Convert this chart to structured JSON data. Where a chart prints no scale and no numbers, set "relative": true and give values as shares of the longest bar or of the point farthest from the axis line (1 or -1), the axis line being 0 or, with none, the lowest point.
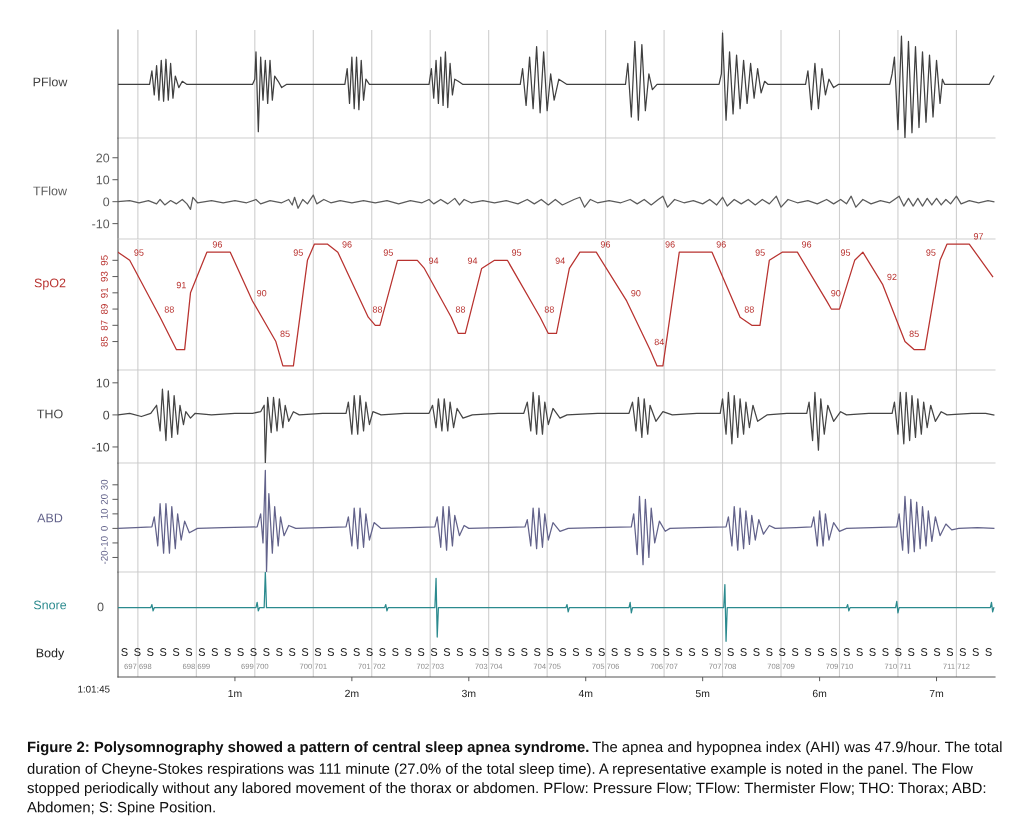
{
  "chart_data": [
    {
      "type": "line",
      "ylabel": "PFlow",
      "relative": true,
      "tick_labels": false,
      "xlim": [
        0,
        7.5
      ],
      "color": "#404040",
      "x": [
        0,
        0.27,
        0.29,
        0.31,
        0.33,
        0.35,
        0.37,
        0.39,
        0.41,
        0.43,
        0.45,
        0.47,
        0.49,
        0.52,
        0.55,
        0.59,
        1.15,
        1.17,
        1.18,
        1.2,
        1.22,
        1.24,
        1.26,
        1.28,
        1.3,
        1.32,
        1.34,
        1.37,
        1.4,
        1.44,
        1.94,
        1.96,
        1.98,
        2.0,
        2.02,
        2.04,
        2.06,
        2.08,
        2.1,
        2.12,
        2.15,
        2.66,
        2.68,
        2.7,
        2.72,
        2.74,
        2.76,
        2.78,
        2.8,
        2.82,
        2.84,
        2.86,
        2.88,
        2.91,
        2.95,
        3.44,
        3.46,
        3.49,
        3.52,
        3.55,
        3.58,
        3.61,
        3.64,
        3.67,
        3.7,
        3.73,
        3.77,
        3.84,
        4.34,
        4.36,
        4.39,
        4.42,
        4.45,
        4.48,
        4.51,
        4.54,
        4.57,
        4.61,
        5.14,
        5.16,
        5.17,
        5.2,
        5.23,
        5.26,
        5.29,
        5.32,
        5.35,
        5.38,
        5.41,
        5.44,
        5.47,
        5.5,
        5.53,
        5.56,
        5.88,
        5.9,
        5.93,
        5.96,
        5.99,
        6.02,
        6.05,
        6.08,
        6.12,
        6.16,
        6.6,
        6.62,
        6.64,
        6.67,
        6.7,
        6.73,
        6.76,
        6.79,
        6.82,
        6.85,
        6.88,
        6.91,
        6.94,
        6.97,
        7.0,
        7.03,
        7.05,
        7.07,
        7.45,
        7.49
      ],
      "values": [
        0.51,
        0.51,
        0.64,
        0.41,
        0.69,
        0.36,
        0.74,
        0.35,
        0.75,
        0.36,
        0.71,
        0.38,
        0.59,
        0.48,
        0.54,
        0.51,
        0.51,
        0.56,
        0.82,
        0.06,
        0.77,
        0.36,
        0.74,
        0.33,
        0.74,
        0.36,
        0.59,
        0.54,
        0.48,
        0.51,
        0.51,
        0.66,
        0.33,
        0.77,
        0.28,
        0.77,
        0.27,
        0.74,
        0.36,
        0.56,
        0.51,
        0.51,
        0.66,
        0.38,
        0.74,
        0.33,
        0.77,
        0.31,
        0.82,
        0.29,
        0.71,
        0.41,
        0.56,
        0.54,
        0.51,
        0.51,
        0.66,
        0.31,
        0.77,
        0.28,
        0.87,
        0.24,
        0.82,
        0.26,
        0.61,
        0.36,
        0.56,
        0.51,
        0.51,
        0.71,
        0.2,
        0.92,
        0.17,
        0.89,
        0.26,
        0.61,
        0.46,
        0.51,
        0.51,
        0.61,
        1,
        0.17,
        0.82,
        0.23,
        0.79,
        0.28,
        0.74,
        0.33,
        0.71,
        0.38,
        0.66,
        0.43,
        0.54,
        0.51,
        0.51,
        0.64,
        0.27,
        0.71,
        0.28,
        0.66,
        0.41,
        0.56,
        0.48,
        0.51,
        0.51,
        0.61,
        0.77,
        0.08,
        0.97,
        0,
        0.92,
        0.05,
        0.87,
        0.1,
        0.82,
        0.15,
        0.79,
        0.2,
        0.74,
        0.33,
        0.56,
        0.51,
        0.51,
        0.59
      ],
      "ref_lines": [
        {
          "axis": "x",
          "value": 0.17
        },
        {
          "axis": "x",
          "value": 0.67
        },
        {
          "axis": "x",
          "value": 1.17
        },
        {
          "axis": "x",
          "value": 1.67
        },
        {
          "axis": "x",
          "value": 2.17
        },
        {
          "axis": "x",
          "value": 2.67
        },
        {
          "axis": "x",
          "value": 3.17
        },
        {
          "axis": "x",
          "value": 3.67
        },
        {
          "axis": "x",
          "value": 4.17
        },
        {
          "axis": "x",
          "value": 4.67
        },
        {
          "axis": "x",
          "value": 5.17
        },
        {
          "axis": "x",
          "value": 5.67
        },
        {
          "axis": "x",
          "value": 6.17
        },
        {
          "axis": "x",
          "value": 6.67
        },
        {
          "axis": "x",
          "value": 7.17
        }
      ],
      "annotations": [
        "Figure 2: Polysomnography showed a pattern of central sleep apnea syndrome.",
        "The apnea and hypopnea index (AHI) was 47.9/hour. The total",
        "duration of Cheyne-Stokes respirations was 111 minute (27.0% of the total sleep time). A representative example is noted in the panel. The Flow stopped periodically without any labored movement of the thorax or abdomen. PFlow: Pressure Flow; TFlow: Thermister Flow; THO: Thorax; ABD: Abdomen; S: Spine Position."
      ]
    },
    {
      "type": "line",
      "ylabel": "TFlow",
      "tick_labels": "y",
      "xlim": [
        0,
        7.5
      ],
      "ylim": [
        -17,
        29
      ],
      "yticks": [
        20,
        10,
        0,
        -10
      ],
      "color": "#5b5b5b",
      "x": [
        0,
        0.1,
        0.18,
        0.26,
        0.33,
        0.36,
        0.4,
        0.45,
        0.5,
        0.55,
        0.59,
        0.62,
        0.64,
        0.68,
        0.8,
        0.9,
        1.0,
        1.1,
        1.18,
        1.22,
        1.3,
        1.4,
        1.46,
        1.49,
        1.51,
        1.54,
        1.58,
        1.62,
        1.67,
        1.7,
        1.76,
        1.82,
        1.9,
        2.0,
        2.1,
        2.2,
        2.3,
        2.4,
        2.5,
        2.6,
        2.66,
        2.7,
        2.76,
        2.82,
        2.88,
        2.92,
        2.96,
        3.02,
        3.12,
        3.22,
        3.32,
        3.42,
        3.5,
        3.56,
        3.62,
        3.68,
        3.74,
        3.8,
        3.9,
        3.95,
        3.99,
        4.04,
        4.1,
        4.2,
        4.3,
        4.38,
        4.44,
        4.5,
        4.56,
        4.62,
        4.66,
        4.7,
        4.76,
        4.84,
        4.92,
        5.0,
        5.06,
        5.12,
        5.17,
        5.21,
        5.27,
        5.33,
        5.39,
        5.45,
        5.51,
        5.57,
        5.63,
        5.67,
        5.73,
        5.81,
        5.9,
        5.98,
        6.06,
        6.12,
        6.18,
        6.23,
        6.27,
        6.31,
        6.37,
        6.44,
        6.52,
        6.6,
        6.64,
        6.68,
        6.72,
        6.76,
        6.8,
        6.84,
        6.88,
        6.92,
        6.96,
        7.0,
        7.04,
        7.08,
        7.12,
        7.17,
        7.21,
        7.28,
        7.36,
        7.44,
        7.49
      ],
      "values": [
        0,
        0.5,
        -0.5,
        0.5,
        -1,
        1,
        -1.5,
        0.5,
        -1,
        1,
        -1,
        -3.5,
        2,
        -0.5,
        0.5,
        -0.5,
        0.5,
        -0.5,
        1,
        -1,
        0.5,
        -0.5,
        1,
        -1.5,
        2,
        -3,
        1,
        -1,
        3,
        -1,
        1,
        -0.5,
        0.5,
        -0.5,
        0.5,
        -0.5,
        0.5,
        -1,
        0.5,
        -0.5,
        1,
        -1,
        1,
        -1,
        1.5,
        -1.5,
        1,
        -0.5,
        0.5,
        -0.5,
        0.5,
        -1,
        1,
        -1,
        1,
        -1.5,
        1,
        -1.5,
        1,
        2,
        -2.5,
        1,
        -0.5,
        0.5,
        -0.5,
        1,
        -1,
        1,
        -1.5,
        1,
        2.5,
        -2.5,
        1,
        -0.5,
        0.5,
        -1,
        1,
        -1.5,
        2,
        -2,
        1,
        -1,
        1,
        -1.5,
        1,
        -1,
        2.5,
        -2.5,
        1,
        -0.5,
        0.5,
        -1,
        1,
        -1,
        1,
        -1,
        2.5,
        -2.5,
        1,
        -1,
        0.5,
        -0.5,
        1,
        2.5,
        -2,
        1.5,
        -2,
        1.5,
        -2,
        1.5,
        -1.5,
        1.5,
        -1.5,
        1,
        -1,
        2.5,
        -1,
        0.5,
        -0.5,
        0.5,
        0
      ],
      "ref_lines": [
        {
          "axis": "x",
          "value": 0.17
        },
        {
          "axis": "x",
          "value": 0.67
        },
        {
          "axis": "x",
          "value": 1.17
        },
        {
          "axis": "x",
          "value": 1.67
        },
        {
          "axis": "x",
          "value": 2.17
        },
        {
          "axis": "x",
          "value": 2.67
        },
        {
          "axis": "x",
          "value": 3.17
        },
        {
          "axis": "x",
          "value": 3.67
        },
        {
          "axis": "x",
          "value": 4.17
        },
        {
          "axis": "x",
          "value": 4.67
        },
        {
          "axis": "x",
          "value": 5.17
        },
        {
          "axis": "x",
          "value": 5.67
        },
        {
          "axis": "x",
          "value": 6.17
        },
        {
          "axis": "x",
          "value": 6.67
        },
        {
          "axis": "x",
          "value": 7.17
        }
      ]
    },
    {
      "type": "line",
      "ylabel": "SpO2",
      "tick_labels": "y",
      "xlim": [
        0,
        7.5
      ],
      "ylim": [
        81.5,
        97.5
      ],
      "yticks": [
        95,
        93,
        91,
        89,
        87,
        85
      ],
      "color": "#b8322f",
      "x": [
        0.0,
        0.1,
        0.36,
        0.5,
        0.57,
        0.62,
        0.76,
        0.85,
        0.96,
        1.15,
        1.35,
        1.41,
        1.5,
        1.62,
        1.68,
        1.79,
        1.88,
        2.14,
        2.2,
        2.24,
        2.39,
        2.56,
        2.62,
        2.85,
        2.91,
        2.97,
        3.11,
        3.22,
        3.33,
        3.61,
        3.68,
        3.75,
        3.86,
        3.95,
        4.09,
        4.35,
        4.55,
        4.61,
        4.66,
        4.8,
        5.02,
        5.08,
        5.32,
        5.42,
        5.49,
        5.57,
        5.68,
        5.81,
        6.06,
        6.1,
        6.17,
        6.3,
        6.37,
        6.54,
        6.73,
        6.81,
        6.9,
        7.03,
        7.09,
        7.28,
        7.48
      ],
      "values": [
        96,
        95,
        88,
        84,
        84,
        91,
        96,
        96,
        96,
        90,
        85,
        82,
        82,
        95,
        97,
        97,
        96,
        88,
        87,
        87,
        95,
        95,
        94,
        88,
        86,
        86,
        94,
        95,
        95,
        88,
        86,
        86,
        94,
        96,
        96,
        90,
        84,
        82,
        82,
        96,
        96,
        96,
        88,
        87,
        87,
        95,
        96,
        96,
        90,
        89,
        89,
        95,
        96,
        92,
        85,
        84,
        84,
        95,
        97,
        97,
        93
      ],
      "value_labels": [
        null,
        "95",
        "88",
        null,
        null,
        "91",
        null,
        "96",
        null,
        "90",
        "85",
        null,
        null,
        "95",
        null,
        null,
        "96",
        "88",
        null,
        null,
        "95",
        null,
        "94",
        "88",
        null,
        null,
        "94",
        null,
        "95",
        "88",
        null,
        null,
        "94",
        null,
        "96",
        "90",
        "84",
        null,
        null,
        "96",
        null,
        "96",
        "88",
        null,
        null,
        "95",
        null,
        "96",
        "90",
        null,
        null,
        "95",
        null,
        "92",
        "85",
        null,
        null,
        "95",
        null,
        "97",
        null
      ],
      "ref_lines": [
        {
          "axis": "x",
          "value": 0.17
        },
        {
          "axis": "x",
          "value": 0.67
        },
        {
          "axis": "x",
          "value": 1.17
        },
        {
          "axis": "x",
          "value": 1.67
        },
        {
          "axis": "x",
          "value": 2.17
        },
        {
          "axis": "x",
          "value": 2.67
        },
        {
          "axis": "x",
          "value": 3.17
        },
        {
          "axis": "x",
          "value": 3.67
        },
        {
          "axis": "x",
          "value": 4.17
        },
        {
          "axis": "x",
          "value": 4.67
        },
        {
          "axis": "x",
          "value": 5.17
        },
        {
          "axis": "x",
          "value": 5.67
        },
        {
          "axis": "x",
          "value": 6.17
        },
        {
          "axis": "x",
          "value": 6.67
        },
        {
          "axis": "x",
          "value": 7.17
        }
      ]
    },
    {
      "type": "line",
      "ylabel": "THO",
      "tick_labels": "y",
      "xlim": [
        0,
        7.5
      ],
      "ylim": [
        -15,
        14
      ],
      "yticks": [
        10,
        0,
        -10
      ],
      "color": "#454545",
      "x": [
        0,
        0.1,
        0.2,
        0.28,
        0.33,
        0.36,
        0.38,
        0.41,
        0.43,
        0.46,
        0.48,
        0.51,
        0.53,
        0.56,
        0.58,
        0.62,
        0.66,
        0.8,
        1.0,
        1.15,
        1.22,
        1.25,
        1.26,
        1.28,
        1.31,
        1.33,
        1.36,
        1.38,
        1.41,
        1.43,
        1.46,
        1.5,
        1.55,
        1.75,
        1.95,
        1.97,
        2.0,
        2.02,
        2.05,
        2.07,
        2.1,
        2.12,
        2.15,
        2.18,
        2.25,
        2.45,
        2.66,
        2.69,
        2.72,
        2.74,
        2.77,
        2.79,
        2.82,
        2.84,
        2.87,
        2.9,
        2.95,
        3.03,
        3.25,
        3.47,
        3.5,
        3.53,
        3.55,
        3.58,
        3.6,
        3.63,
        3.65,
        3.68,
        3.72,
        3.78,
        3.84,
        4.1,
        4.37,
        4.4,
        4.43,
        4.45,
        4.48,
        4.5,
        4.53,
        4.55,
        4.6,
        4.66,
        4.74,
        4.95,
        5.15,
        5.17,
        5.2,
        5.22,
        5.25,
        5.27,
        5.3,
        5.32,
        5.35,
        5.37,
        5.4,
        5.43,
        5.47,
        5.55,
        5.72,
        5.89,
        5.91,
        5.94,
        5.96,
        5.99,
        6.01,
        6.04,
        6.07,
        6.12,
        6.18,
        6.23,
        6.42,
        6.62,
        6.64,
        6.67,
        6.69,
        6.72,
        6.74,
        6.77,
        6.79,
        6.82,
        6.84,
        6.87,
        6.89,
        6.92,
        6.95,
        6.99,
        7.04,
        7.09,
        7.3,
        7.42,
        7.49
      ],
      "values": [
        0,
        0.5,
        -0.5,
        0.5,
        3,
        -5,
        8,
        -8,
        7.5,
        -7,
        6,
        -6,
        3,
        -3,
        1,
        -1,
        0.5,
        0,
        0.5,
        0.5,
        1,
        3,
        -15,
        5.5,
        -5.5,
        5.5,
        -5,
        5,
        -4,
        3,
        -2,
        1,
        0,
        0.5,
        0.5,
        4,
        -6,
        6,
        -6,
        6,
        -5,
        4,
        -3,
        1,
        0,
        0.5,
        0.5,
        3,
        -4,
        5,
        -5,
        5,
        -5,
        4,
        -4,
        2,
        -1,
        0,
        0.5,
        0.5,
        4,
        -5,
        7,
        -6,
        6,
        -6,
        4,
        -3,
        2,
        -1,
        0,
        0.5,
        0.5,
        4,
        -5,
        5.5,
        -7,
        5,
        -6,
        3,
        -2,
        1,
        0,
        0.5,
        0.5,
        5,
        -6,
        7,
        -9,
        6,
        -7,
        5,
        -6,
        4,
        -4,
        3,
        -2,
        0,
        0.5,
        0.5,
        4,
        -8,
        7,
        -11,
        5,
        -6,
        3,
        -2,
        1,
        0,
        0.5,
        0.5,
        4,
        -6,
        7,
        -9,
        7,
        -8,
        6,
        -7,
        5,
        -6,
        4,
        -4,
        3,
        -2,
        1,
        0,
        0.5,
        0.5,
        0
      ],
      "ref_lines": [
        {
          "axis": "x",
          "value": 0.17
        },
        {
          "axis": "x",
          "value": 0.67
        },
        {
          "axis": "x",
          "value": 1.17
        },
        {
          "axis": "x",
          "value": 1.67
        },
        {
          "axis": "x",
          "value": 2.17
        },
        {
          "axis": "x",
          "value": 2.67
        },
        {
          "axis": "x",
          "value": 3.17
        },
        {
          "axis": "x",
          "value": 3.67
        },
        {
          "axis": "x",
          "value": 4.17
        },
        {
          "axis": "x",
          "value": 4.67
        },
        {
          "axis": "x",
          "value": 5.17
        },
        {
          "axis": "x",
          "value": 5.67
        },
        {
          "axis": "x",
          "value": 6.17
        },
        {
          "axis": "x",
          "value": 6.67
        },
        {
          "axis": "x",
          "value": 7.17
        }
      ]
    },
    {
      "type": "line",
      "ylabel": "ABD",
      "tick_labels": "y",
      "xlim": [
        0,
        7.5
      ],
      "ylim": [
        -30,
        45
      ],
      "yticks": [
        30,
        20,
        10,
        0,
        -10,
        -20
      ],
      "color": "#62628a",
      "x": [
        0,
        0.15,
        0.29,
        0.31,
        0.34,
        0.36,
        0.39,
        0.41,
        0.44,
        0.46,
        0.49,
        0.51,
        0.54,
        0.57,
        0.61,
        0.68,
        0.9,
        1.19,
        1.22,
        1.24,
        1.26,
        1.27,
        1.29,
        1.32,
        1.34,
        1.37,
        1.39,
        1.42,
        1.46,
        1.52,
        1.75,
        1.95,
        1.97,
        2.0,
        2.02,
        2.05,
        2.07,
        2.1,
        2.12,
        2.15,
        2.19,
        2.25,
        2.5,
        2.71,
        2.73,
        2.76,
        2.78,
        2.81,
        2.83,
        2.86,
        2.88,
        2.92,
        2.96,
        3.0,
        3.25,
        3.48,
        3.5,
        3.53,
        3.55,
        3.58,
        3.6,
        3.63,
        3.65,
        3.68,
        3.72,
        3.78,
        3.85,
        4.1,
        4.39,
        4.41,
        4.44,
        4.46,
        4.49,
        4.51,
        4.54,
        4.56,
        4.59,
        4.63,
        4.68,
        4.72,
        4.95,
        5.2,
        5.22,
        5.25,
        5.27,
        5.3,
        5.32,
        5.35,
        5.37,
        5.4,
        5.42,
        5.45,
        5.48,
        5.52,
        5.57,
        5.62,
        5.8,
        5.93,
        5.95,
        5.98,
        6.0,
        6.03,
        6.05,
        6.08,
        6.12,
        6.17,
        6.23,
        6.45,
        6.66,
        6.68,
        6.71,
        6.73,
        6.76,
        6.78,
        6.81,
        6.83,
        6.86,
        6.88,
        6.91,
        6.93,
        6.96,
        6.99,
        7.03,
        7.08,
        7.13,
        7.19,
        7.35,
        7.49
      ],
      "values": [
        0,
        0.5,
        1,
        8,
        -12,
        17,
        -17,
        17,
        -17,
        15,
        -14,
        10,
        -8,
        5,
        -3,
        0,
        0.5,
        1,
        10,
        -10,
        40,
        -30,
        24,
        -17,
        15,
        -12,
        8,
        -5,
        2,
        0,
        0.5,
        1,
        8,
        -12,
        14,
        -14,
        14,
        -13,
        10,
        -8,
        4,
        0,
        0.5,
        1,
        8,
        -13,
        15,
        -15,
        15,
        -12,
        9,
        -5,
        2,
        0,
        0.5,
        1,
        6,
        -12,
        14,
        -14,
        14,
        -13,
        10,
        -8,
        4,
        -2,
        0,
        0.5,
        1,
        10,
        -18,
        22,
        -25,
        20,
        -20,
        14,
        -10,
        5,
        -2,
        0,
        0.5,
        1,
        8,
        -12,
        15,
        -15,
        14,
        -14,
        12,
        -11,
        9,
        -8,
        6,
        -4,
        2,
        0,
        0.5,
        1,
        8,
        -12,
        12,
        -12,
        10,
        -8,
        4,
        -2,
        0,
        0.5,
        1,
        10,
        -15,
        22,
        -17,
        20,
        -16,
        18,
        -14,
        15,
        -12,
        12,
        -9,
        8,
        -5,
        3,
        -1,
        0,
        0.5,
        0
      ],
      "ref_lines": [
        {
          "axis": "x",
          "value": 0.17
        },
        {
          "axis": "x",
          "value": 0.67
        },
        {
          "axis": "x",
          "value": 1.17
        },
        {
          "axis": "x",
          "value": 1.67
        },
        {
          "axis": "x",
          "value": 2.17
        },
        {
          "axis": "x",
          "value": 2.67
        },
        {
          "axis": "x",
          "value": 3.17
        },
        {
          "axis": "x",
          "value": 3.67
        },
        {
          "axis": "x",
          "value": 4.17
        },
        {
          "axis": "x",
          "value": 4.67
        },
        {
          "axis": "x",
          "value": 5.17
        },
        {
          "axis": "x",
          "value": 5.67
        },
        {
          "axis": "x",
          "value": 6.17
        },
        {
          "axis": "x",
          "value": 6.67
        },
        {
          "axis": "x",
          "value": 7.17
        }
      ]
    },
    {
      "type": "line",
      "ylabel": "Snore",
      "relative": true,
      "tick_labels": "x",
      "xlim": [
        0,
        7.5
      ],
      "color": "#2b8a8e",
      "xticks": [
        {
          "value": 1,
          "label": "1m"
        },
        {
          "value": 2,
          "label": "2m"
        },
        {
          "value": 3,
          "label": "3m"
        },
        {
          "value": 4,
          "label": "4m"
        },
        {
          "value": 5,
          "label": "5m"
        },
        {
          "value": 6,
          "label": "6m"
        },
        {
          "value": 7,
          "label": "7m"
        }
      ],
      "x": [
        0,
        0.28,
        0.29,
        0.3,
        0.31,
        1.18,
        1.19,
        1.2,
        1.21,
        1.25,
        1.26,
        1.27,
        2.28,
        2.29,
        2.3,
        2.31,
        2.71,
        2.72,
        2.73,
        2.74,
        3.83,
        3.84,
        3.85,
        3.86,
        4.37,
        4.38,
        4.39,
        4.4,
        5.18,
        5.19,
        5.2,
        5.21,
        6.23,
        6.24,
        6.25,
        6.26,
        6.65,
        6.66,
        6.67,
        6.68,
        7.46,
        7.47,
        7.48,
        7.49
      ],
      "values": [
        0.66,
        0.66,
        0.69,
        0.63,
        0.66,
        0.66,
        0.71,
        0.63,
        0.66,
        0.66,
        1,
        0.66,
        0.66,
        0.69,
        0.63,
        0.66,
        0.66,
        0.94,
        0.38,
        0.66,
        0.66,
        0.69,
        0.62,
        0.66,
        0.66,
        0.71,
        0.61,
        0.66,
        0.66,
        0.88,
        0.34,
        0.66,
        0.66,
        0.69,
        0.63,
        0.66,
        0.66,
        0.72,
        0.61,
        0.66,
        0.66,
        0.71,
        0.62,
        0.66
      ],
      "ref_lines": [
        {
          "axis": "x",
          "value": 0.17
        },
        {
          "axis": "x",
          "value": 0.67
        },
        {
          "axis": "x",
          "value": 1.17
        },
        {
          "axis": "x",
          "value": 1.67
        },
        {
          "axis": "x",
          "value": 2.17
        },
        {
          "axis": "x",
          "value": 2.67
        },
        {
          "axis": "x",
          "value": 3.17
        },
        {
          "axis": "x",
          "value": 3.67
        },
        {
          "axis": "x",
          "value": 4.17
        },
        {
          "axis": "x",
          "value": 4.67
        },
        {
          "axis": "x",
          "value": 5.17
        },
        {
          "axis": "x",
          "value": 5.67
        },
        {
          "axis": "x",
          "value": 6.17
        },
        {
          "axis": "x",
          "value": 6.67
        },
        {
          "axis": "x",
          "value": 7.17
        }
      ],
      "annotations": [
        {
          "text": "697 698",
          "x": 0.17
        },
        {
          "text": "698 699",
          "x": 0.67
        },
        {
          "text": "699 700",
          "x": 1.17
        },
        {
          "text": "700 701",
          "x": 1.67
        },
        {
          "text": "701 702",
          "x": 2.17
        },
        {
          "text": "702 703",
          "x": 2.67
        },
        {
          "text": "703 704",
          "x": 3.17
        },
        {
          "text": "704 705",
          "x": 3.67
        },
        {
          "text": "705 706",
          "x": 4.17
        },
        {
          "text": "706 707",
          "x": 4.67
        },
        {
          "text": "707 708",
          "x": 5.17
        },
        {
          "text": "708 709",
          "x": 5.67
        },
        {
          "text": "709 710",
          "x": 6.17
        },
        {
          "text": "710 711",
          "x": 6.67
        },
        {
          "text": "711 712",
          "x": 7.17
        },
        "0",
        "Body",
        "1:01:45",
        "S",
        "S",
        "S",
        "S",
        "S",
        "S",
        "S",
        "S",
        "S",
        "S",
        "S",
        "S",
        "S",
        "S",
        "S",
        "S",
        "S",
        "S",
        "S",
        "S",
        "S",
        "S",
        "S",
        "S",
        "S",
        "S",
        "S",
        "S",
        "S",
        "S",
        "S",
        "S",
        "S",
        "S",
        "S",
        "S",
        "S",
        "S",
        "S",
        "S",
        "S",
        "S",
        "S",
        "S",
        "S",
        "S",
        "S",
        "S",
        "S",
        "S",
        "S",
        "S",
        "S",
        "S",
        "S",
        "S",
        "S",
        "S",
        "S",
        "S",
        "S",
        "S",
        "S",
        "S",
        "S",
        "S",
        "S",
        "S"
      ]
    }
  ]
}
